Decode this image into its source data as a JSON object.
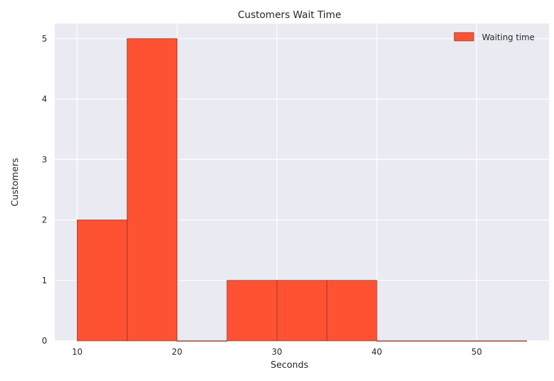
{
  "chart_data": {
    "type": "bar",
    "title": "Customers Wait Time",
    "xlabel": "Seconds",
    "ylabel": "Customers",
    "bins": [
      {
        "start": 10,
        "end": 15,
        "count": 2
      },
      {
        "start": 15,
        "end": 20,
        "count": 5
      },
      {
        "start": 20,
        "end": 25,
        "count": 0
      },
      {
        "start": 25,
        "end": 30,
        "count": 1
      },
      {
        "start": 30,
        "end": 35,
        "count": 1
      },
      {
        "start": 35,
        "end": 40,
        "count": 1
      },
      {
        "start": 40,
        "end": 45,
        "count": 0
      },
      {
        "start": 45,
        "end": 50,
        "count": 0
      },
      {
        "start": 50,
        "end": 55,
        "count": 0
      }
    ],
    "xlim": [
      7.75,
      57.25
    ],
    "ylim": [
      0,
      5.25
    ],
    "xticks": [
      10,
      20,
      30,
      40,
      50
    ],
    "yticks": [
      0,
      1,
      2,
      3,
      4,
      5
    ],
    "grid": true,
    "legend": {
      "placement": "top-right",
      "entries": [
        {
          "label": "Waiting time",
          "color": "#FF5233"
        }
      ]
    },
    "colors": {
      "bar": "#FF5233",
      "bar_edge": "#8a3a2a",
      "background": "#EAEAF2",
      "grid": "#ffffff"
    }
  }
}
